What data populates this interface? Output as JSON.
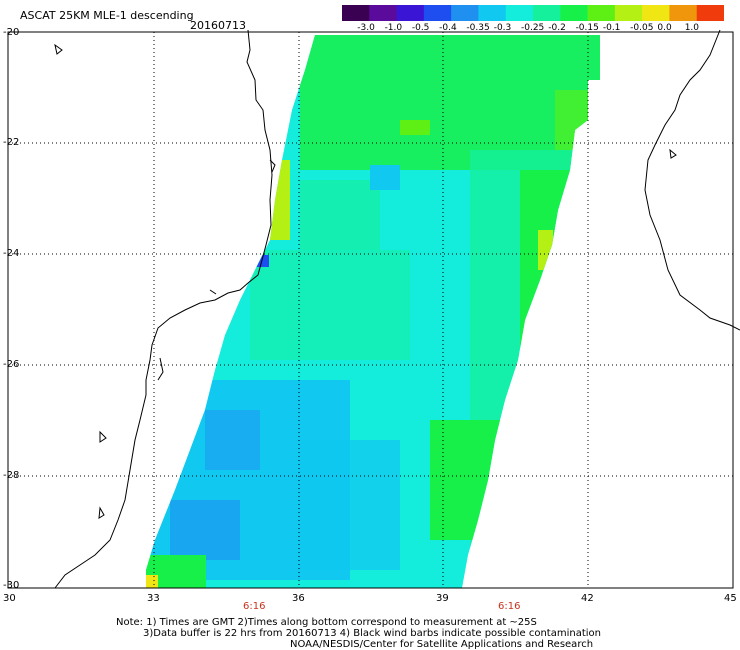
{
  "header": {
    "title": "ASCAT 25KM MLE-1 descending",
    "date": "20160713"
  },
  "color_scale": {
    "labels": [
      "-3.0",
      "-1.0",
      "-0.5",
      "-0.4",
      "-0.35",
      "-0.3",
      "-0.25",
      "-0.2",
      "-0.15",
      "-0.1",
      "-0.05",
      "0.0",
      "1.0"
    ],
    "colors": [
      "#3a0052",
      "#5a0b9c",
      "#3b15d6",
      "#1e4ef0",
      "#1f8ff0",
      "#10c8f0",
      "#14ecdc",
      "#14f09c",
      "#18f04a",
      "#5ef014",
      "#b4f014",
      "#f0e614",
      "#f0960c",
      "#f03c0c"
    ]
  },
  "axes": {
    "lat_labels": [
      "-20",
      "-22",
      "-24",
      "-26",
      "-28",
      "-30"
    ],
    "lon_labels": [
      "30",
      "33",
      "36",
      "39",
      "42",
      "45"
    ]
  },
  "times": [
    "6:16",
    "6:16"
  ],
  "notes": [
    "Note: 1) Times are GMT 2)Times along bottom correspond to measurement at ~25S",
    "3)Data buffer is 22 hrs from 20160713 4) Black wind barbs indicate possible contamination",
    "NOAA/NESDIS/Center for Satellite Applications and Research"
  ]
}
